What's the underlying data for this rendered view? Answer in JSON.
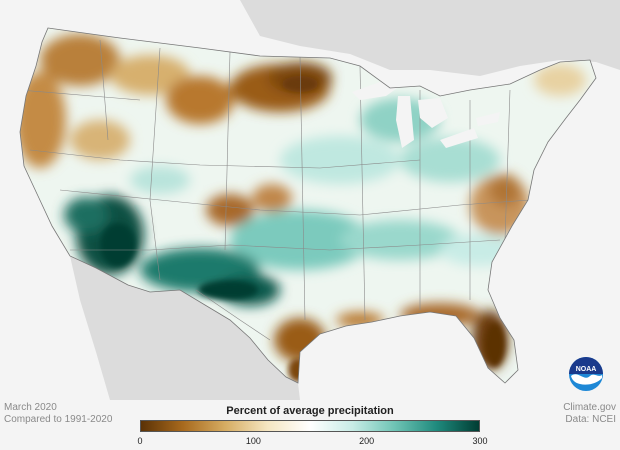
{
  "footer": {
    "left_line1": "March 2020",
    "left_line2": "Compared to 1991-2020",
    "right_line1": "Climate.gov",
    "right_line2": "Data: NCEI"
  },
  "legend": {
    "title": "Percent of average precipitation",
    "ticks": [
      {
        "label": "0",
        "value": 0
      },
      {
        "label": "100",
        "value": 100
      },
      {
        "label": "200",
        "value": 200
      },
      {
        "label": "300",
        "value": 300
      }
    ],
    "range": [
      0,
      300
    ],
    "colors": [
      "#5b3205",
      "#a86a1e",
      "#d6ad63",
      "#f5e6c2",
      "#ffffff",
      "#c8ece6",
      "#6fc4b5",
      "#1f8a7d",
      "#003d33"
    ]
  },
  "logo": {
    "text": "NOAA",
    "color_top": "#1a3a8c",
    "color_bottom": "#1e88d6"
  }
}
